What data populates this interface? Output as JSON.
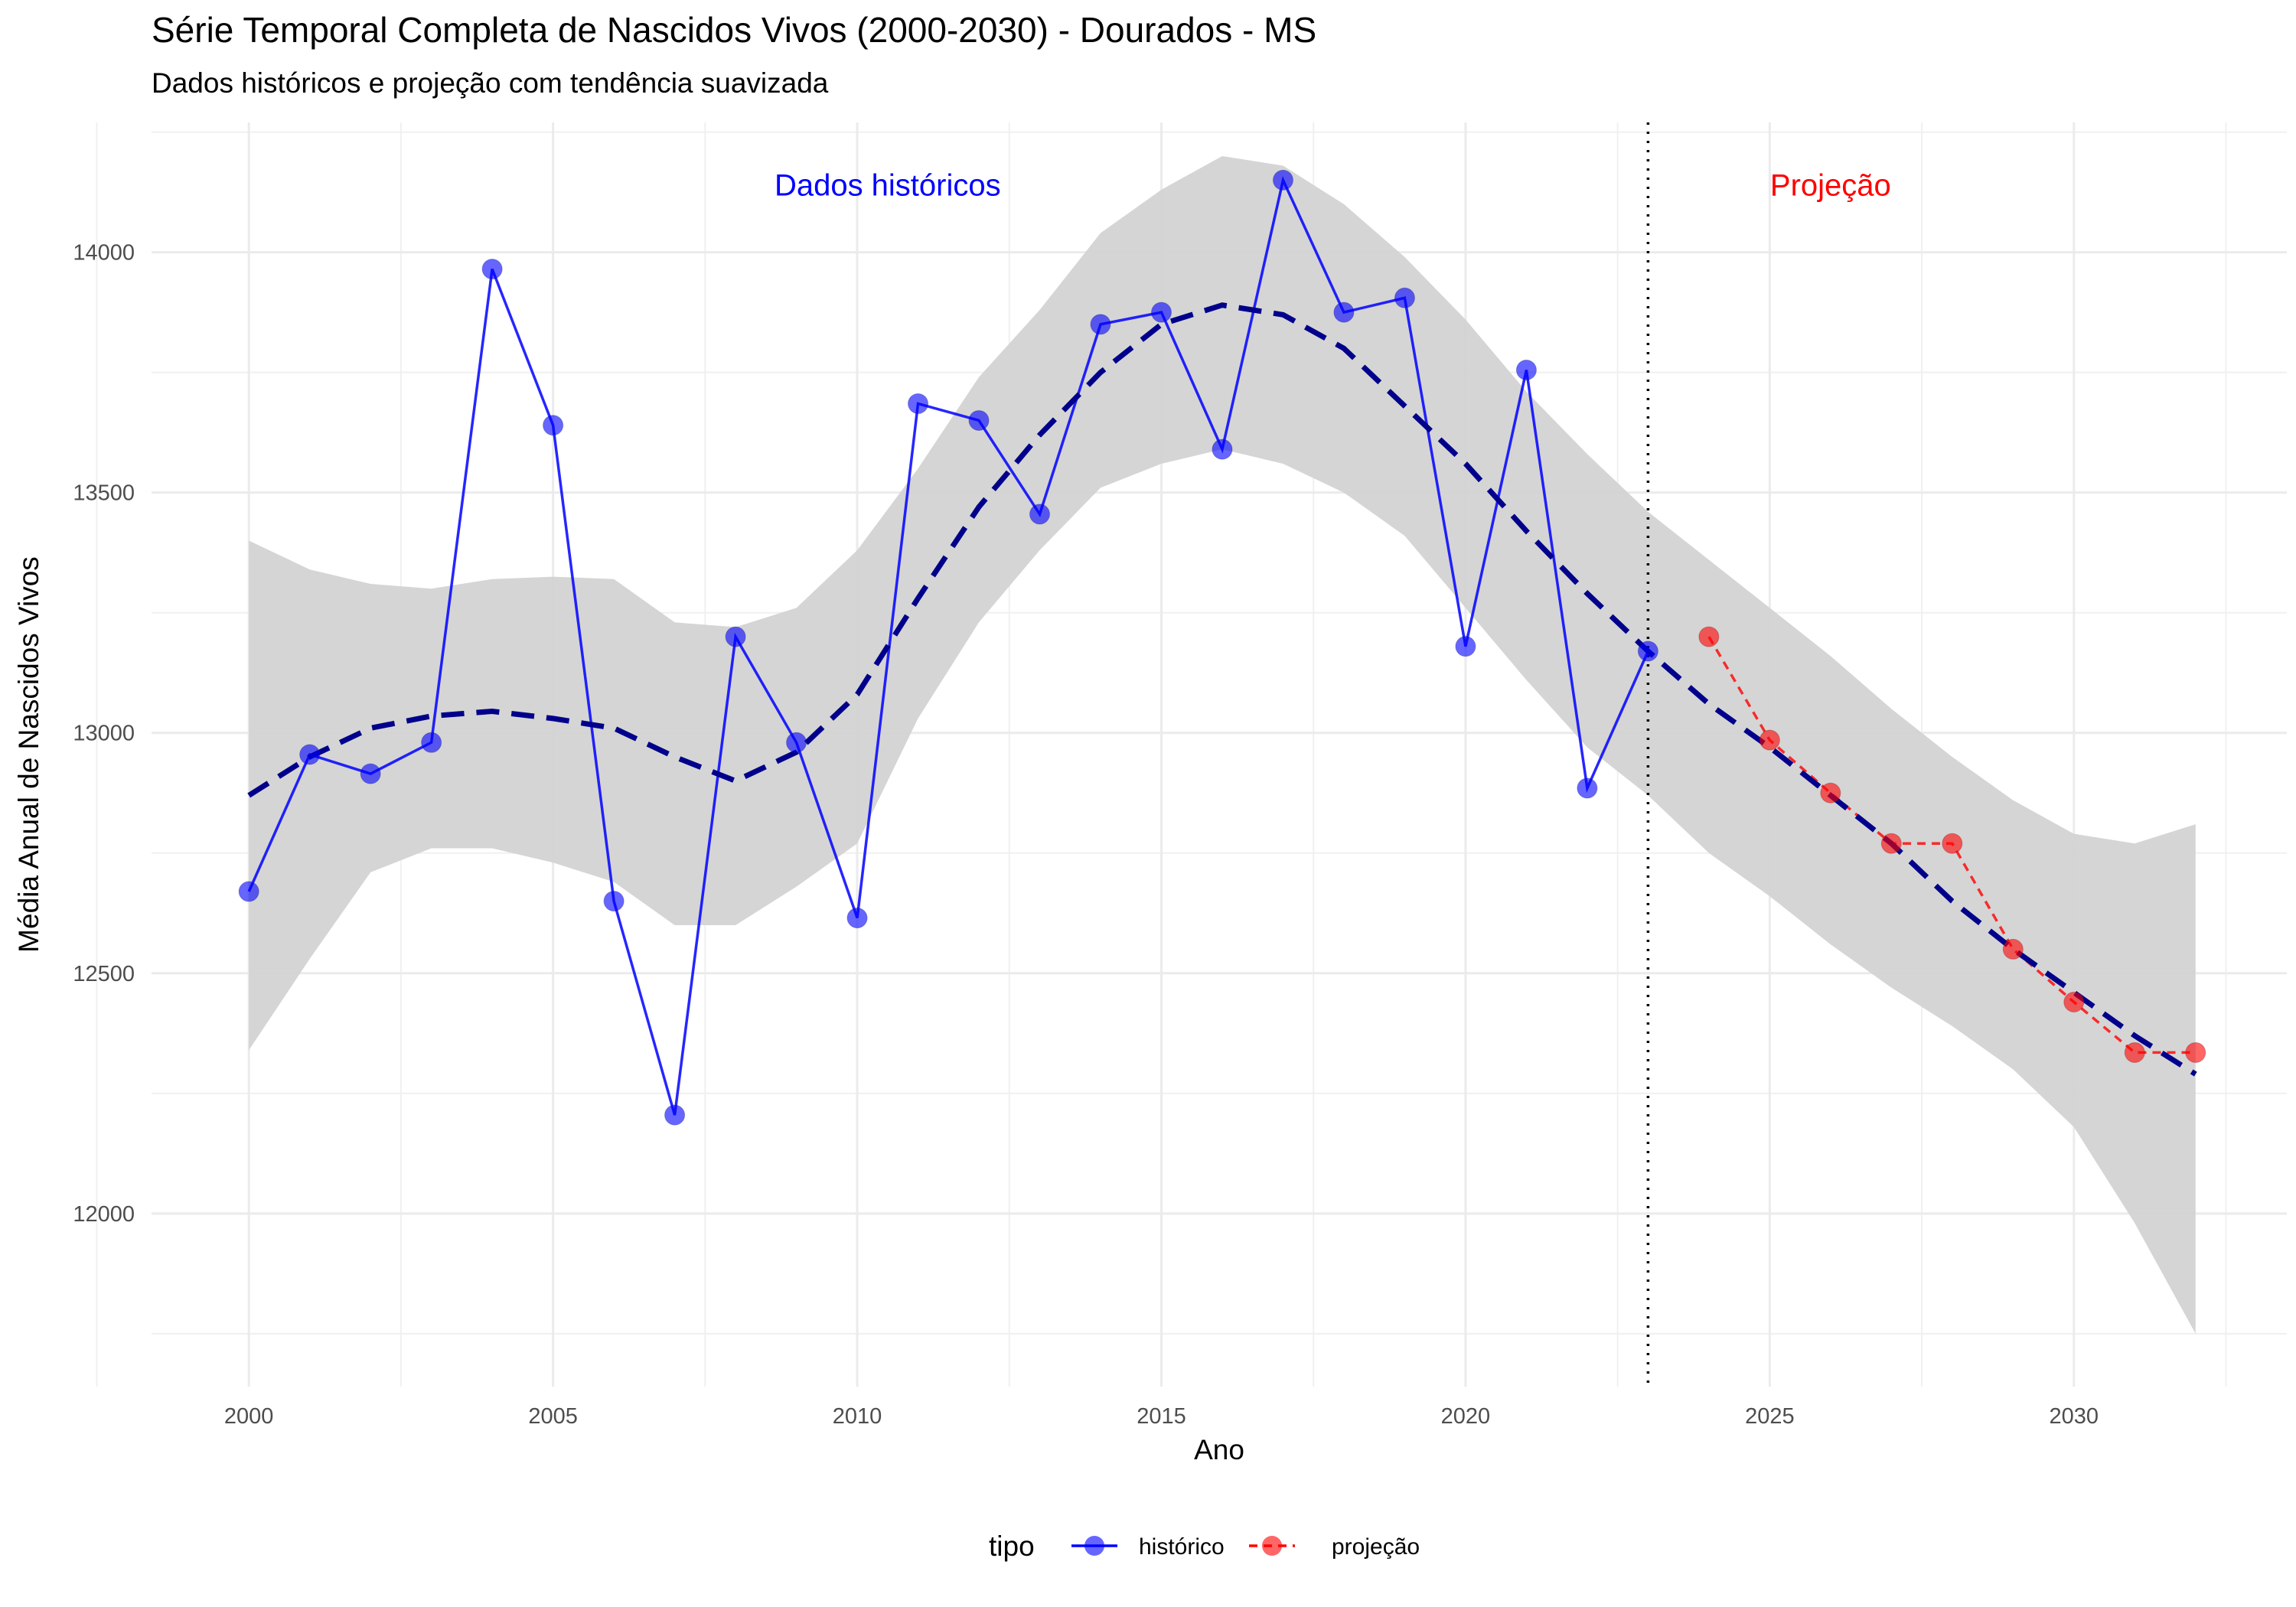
{
  "chart_data": {
    "type": "line",
    "title": "Série Temporal Completa de Nascidos Vivos (2000-2030) -  Dourados - MS",
    "subtitle": "Dados históricos e projeção com tendência suavizada",
    "xlabel": "Ano",
    "ylabel": "Média Anual de Nascidos Vivos",
    "xlim": [
      1998.4,
      2033.5
    ],
    "ylim": [
      11640,
      14270
    ],
    "x_ticks": [
      2000,
      2005,
      2010,
      2015,
      2020,
      2025,
      2030
    ],
    "y_ticks": [
      12000,
      12500,
      13000,
      13500,
      14000
    ],
    "grid": true,
    "legend": {
      "title": "tipo",
      "position": "bottom",
      "entries": [
        "histórico",
        "projeção"
      ]
    },
    "colors": {
      "historico": "#0000FF",
      "projecao": "#FF0000",
      "trend": "#00008B",
      "ribbon": "#D3D3D3",
      "divider": "#000000"
    },
    "divider_x": 2023,
    "annotations": [
      {
        "text": "Dados históricos",
        "x": 2010.5,
        "y": 14140,
        "color": "#0000FF"
      },
      {
        "text": "Projeção",
        "x": 2026,
        "y": 14140,
        "color": "#FF0000"
      }
    ],
    "series": [
      {
        "name": "histórico",
        "x": [
          2000,
          2001,
          2002,
          2003,
          2004,
          2005,
          2006,
          2007,
          2008,
          2009,
          2010,
          2011,
          2012,
          2013,
          2014,
          2015,
          2016,
          2017,
          2018,
          2019,
          2020,
          2021,
          2022,
          2023
        ],
        "y": [
          12670,
          12955,
          12915,
          12980,
          13965,
          13640,
          12650,
          12205,
          13200,
          12980,
          12615,
          13685,
          13650,
          13455,
          13850,
          13875,
          13590,
          14150,
          13875,
          13905,
          13180,
          13755,
          12885,
          13170
        ]
      },
      {
        "name": "projeção",
        "x": [
          2024,
          2025,
          2026,
          2027,
          2028,
          2029,
          2030,
          2031,
          2032
        ],
        "y": [
          13200,
          12985,
          12875,
          12770,
          12770,
          12550,
          12440,
          12335,
          12335
        ]
      }
    ],
    "trend": {
      "x": [
        2000,
        2001,
        2002,
        2003,
        2004,
        2005,
        2006,
        2007,
        2008,
        2009,
        2010,
        2011,
        2012,
        2013,
        2014,
        2015,
        2016,
        2017,
        2018,
        2019,
        2020,
        2021,
        2022,
        2023,
        2024,
        2025,
        2026,
        2027,
        2028,
        2029,
        2030,
        2031,
        2032
      ],
      "y": [
        12870,
        12950,
        13010,
        13035,
        13045,
        13030,
        13010,
        12950,
        12900,
        12960,
        13080,
        13280,
        13470,
        13620,
        13750,
        13850,
        13890,
        13870,
        13800,
        13680,
        13560,
        13420,
        13290,
        13170,
        13060,
        12970,
        12870,
        12770,
        12650,
        12550,
        12460,
        12370,
        12290
      ]
    },
    "ribbon": {
      "x": [
        2000,
        2001,
        2002,
        2003,
        2004,
        2005,
        2006,
        2007,
        2008,
        2009,
        2010,
        2011,
        2012,
        2013,
        2014,
        2015,
        2016,
        2017,
        2018,
        2019,
        2020,
        2021,
        2022,
        2023,
        2024,
        2025,
        2026,
        2027,
        2028,
        2029,
        2030,
        2031,
        2032
      ],
      "upper": [
        13400,
        13340,
        13310,
        13300,
        13320,
        13325,
        13320,
        13230,
        13220,
        13260,
        13380,
        13550,
        13740,
        13880,
        14040,
        14130,
        14200,
        14180,
        14100,
        13990,
        13860,
        13710,
        13580,
        13460,
        13360,
        13260,
        13160,
        13050,
        12950,
        12860,
        12790,
        12770,
        12810
      ],
      "lower": [
        12340,
        12530,
        12710,
        12760,
        12760,
        12730,
        12690,
        12600,
        12600,
        12680,
        12770,
        13030,
        13230,
        13380,
        13510,
        13560,
        13590,
        13560,
        13500,
        13410,
        13260,
        13110,
        12970,
        12870,
        12750,
        12660,
        12560,
        12470,
        12390,
        12300,
        12180,
        11980,
        11750
      ]
    }
  }
}
